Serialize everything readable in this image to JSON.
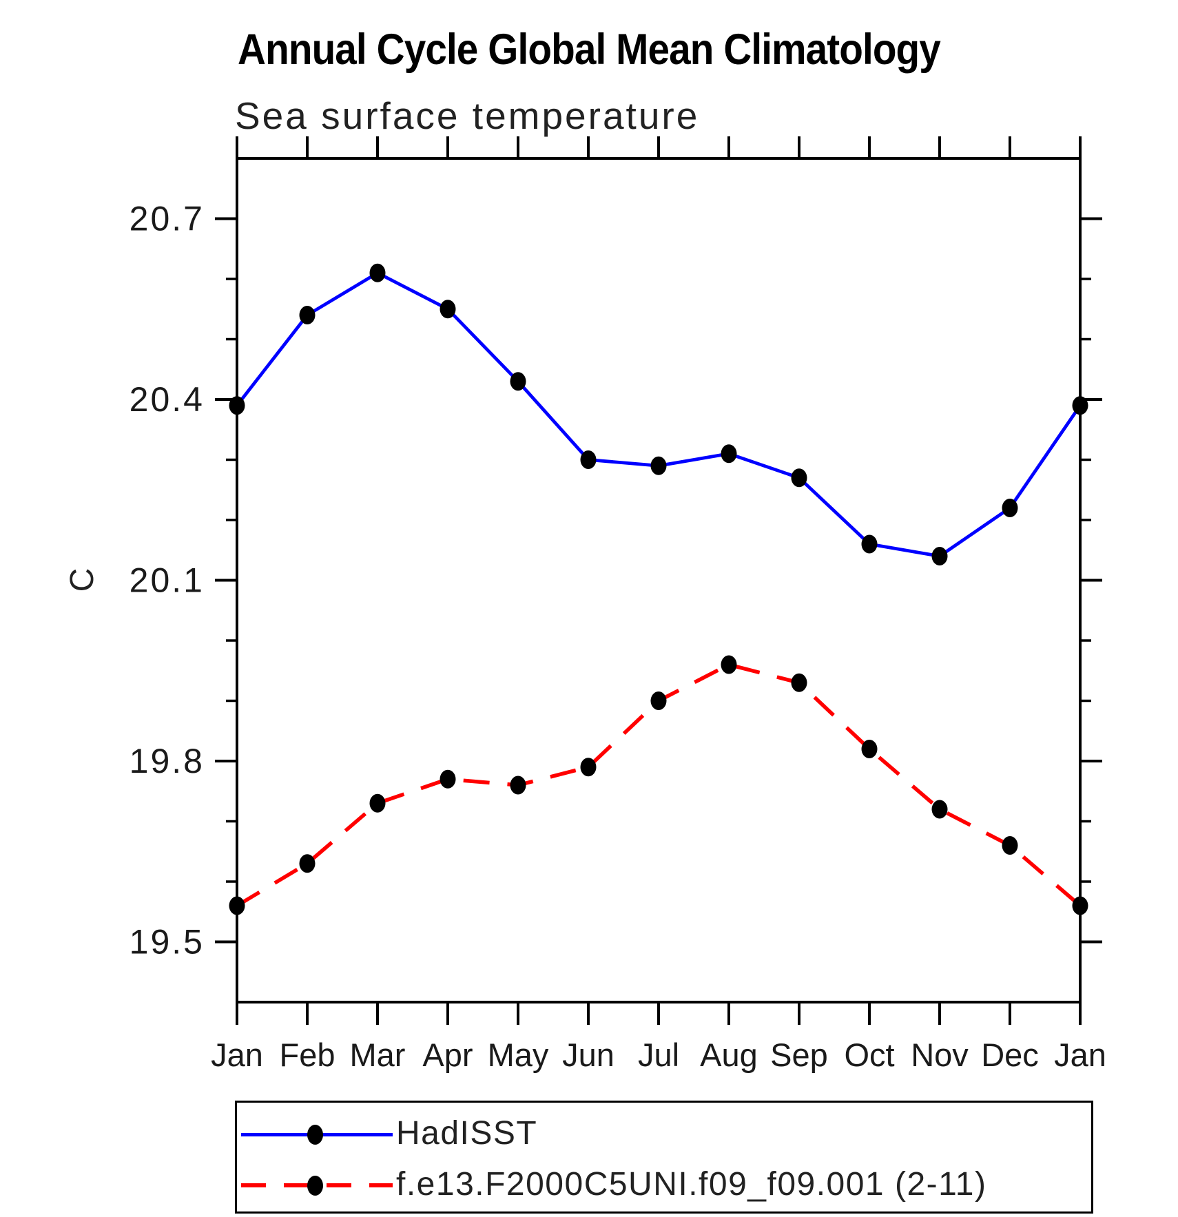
{
  "page": {
    "title": "Annual Cycle Global Mean Climatology",
    "subtitle": "Sea surface temperature"
  },
  "y_axis": {
    "unit_label": "C",
    "tick_labels": [
      "19.5",
      "19.8",
      "20.1",
      "20.4",
      "20.7"
    ]
  },
  "colors": {
    "hadisst_line": "#0000ff",
    "model_line": "#ff0000",
    "marker": "#000000",
    "axis": "#000000"
  },
  "legend": {
    "entries": [
      {
        "label": "HadISST"
      },
      {
        "label": "f.e13.F2000C5UNI.f09_f09.001 (2-11)"
      }
    ]
  },
  "chart_data": {
    "type": "line",
    "title": "Annual Cycle Global Mean Climatology",
    "subtitle": "Sea surface temperature",
    "ylabel": "C",
    "xlabel": "",
    "grid": false,
    "legend_position": "bottom",
    "x_categories": [
      "Jan",
      "Feb",
      "Mar",
      "Apr",
      "May",
      "Jun",
      "Jul",
      "Aug",
      "Sep",
      "Oct",
      "Nov",
      "Dec",
      "Jan"
    ],
    "ylim": [
      19.4,
      20.8
    ],
    "y_major_ticks": [
      19.5,
      19.8,
      20.1,
      20.4,
      20.7
    ],
    "y_minor_step": 0.1,
    "series": [
      {
        "name": "HadISST",
        "color": "#0000ff",
        "line_style": "solid",
        "marker": "filled-circle",
        "marker_color": "#000000",
        "values": [
          20.39,
          20.54,
          20.61,
          20.55,
          20.43,
          20.3,
          20.29,
          20.31,
          20.27,
          20.16,
          20.14,
          20.22,
          20.39
        ]
      },
      {
        "name": "f.e13.F2000C5UNI.f09_f09.001 (2-11)",
        "color": "#ff0000",
        "line_style": "dashed",
        "marker": "filled-circle",
        "marker_color": "#000000",
        "values": [
          19.56,
          19.63,
          19.73,
          19.77,
          19.76,
          19.79,
          19.9,
          19.96,
          19.93,
          19.82,
          19.72,
          19.66,
          19.56
        ]
      }
    ]
  }
}
